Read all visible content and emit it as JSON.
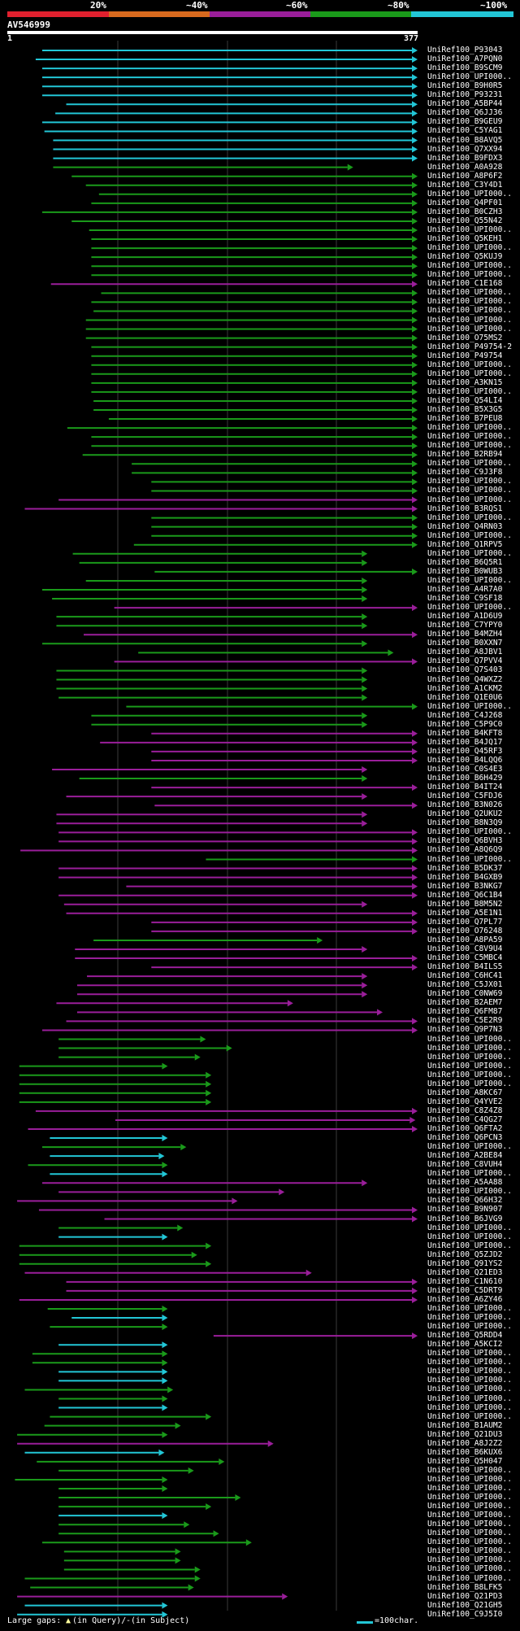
{
  "legend": {
    "labels": [
      "20%",
      "~40%",
      "~60%",
      "~80%",
      "~100%"
    ],
    "colors": [
      "#e0202e",
      "#d86a1e",
      "#9a1e9a",
      "#1a9a1a",
      "#22c6d6"
    ]
  },
  "query": {
    "id": "AV546999",
    "start_label": "1",
    "end_label": "377"
  },
  "footer": {
    "large_gaps_label": "Large gaps:",
    "query_marker": "▲",
    "query_label": "(in Query)/",
    "subject_marker": "-",
    "subject_label": " (in Subject)",
    "scale_label": "=100char."
  },
  "hits": [
    {
      "label": "UniRef100_P93043",
      "s": 33,
      "e": 377,
      "c": "c",
      "a": 1
    },
    {
      "label": "UniRef100_A7PQN0",
      "s": 27,
      "e": 377,
      "c": "c",
      "a": 1
    },
    {
      "label": "UniRef100_B9SCM9",
      "s": 33,
      "e": 377,
      "c": "c",
      "a": 1
    },
    {
      "label": "UniRef100_UPI000..",
      "s": 33,
      "e": 377,
      "c": "c",
      "a": 1
    },
    {
      "label": "UniRef100_B9H0R5",
      "s": 33,
      "e": 377,
      "c": "c",
      "a": 1
    },
    {
      "label": "UniRef100_P93231",
      "s": 33,
      "e": 377,
      "c": "c",
      "a": 1
    },
    {
      "label": "UniRef100_A5BP44",
      "s": 55,
      "e": 377,
      "c": "c",
      "a": 1
    },
    {
      "label": "UniRef100_Q6JJ36",
      "s": 45,
      "e": 377,
      "c": "c",
      "a": 1
    },
    {
      "label": "UniRef100_B9GEU9",
      "s": 33,
      "e": 377,
      "c": "c",
      "a": 1
    },
    {
      "label": "UniRef100_C5YAG1",
      "s": 35,
      "e": 377,
      "c": "c",
      "a": 1
    },
    {
      "label": "UniRef100_B8AVQ5",
      "s": 43,
      "e": 377,
      "c": "c",
      "a": 1
    },
    {
      "label": "UniRef100_Q7XX94",
      "s": 43,
      "e": 377,
      "c": "c",
      "a": 1
    },
    {
      "label": "UniRef100_B9FDX3",
      "s": 43,
      "e": 377,
      "c": "c",
      "a": 1
    },
    {
      "label": "UniRef100_A0A928",
      "s": 43,
      "e": 318,
      "c": "g",
      "a": 1
    },
    {
      "label": "UniRef100_A8P6F2",
      "s": 60,
      "e": 377,
      "c": "g",
      "a": 1
    },
    {
      "label": "UniRef100_C3Y4D1",
      "s": 73,
      "e": 377,
      "c": "g",
      "a": 1
    },
    {
      "label": "UniRef100_UPI000..",
      "s": 85,
      "e": 377,
      "c": "g",
      "a": 1
    },
    {
      "label": "UniRef100_Q4PF01",
      "s": 78,
      "e": 377,
      "c": "g",
      "a": 1
    },
    {
      "label": "UniRef100_B0CZH3",
      "s": 33,
      "e": 377,
      "c": "g",
      "a": 1
    },
    {
      "label": "UniRef100_Q55N42",
      "s": 60,
      "e": 377,
      "c": "g",
      "a": 1
    },
    {
      "label": "UniRef100_UPI000..",
      "s": 76,
      "e": 377,
      "c": "g",
      "a": 1
    },
    {
      "label": "UniRef100_Q5KEH1",
      "s": 78,
      "e": 377,
      "c": "g",
      "a": 1
    },
    {
      "label": "UniRef100_UPI000..",
      "s": 78,
      "e": 377,
      "c": "g",
      "a": 1
    },
    {
      "label": "UniRef100_Q5KUJ9",
      "s": 78,
      "e": 377,
      "c": "g",
      "a": 1
    },
    {
      "label": "UniRef100_UPI000..",
      "s": 78,
      "e": 377,
      "c": "g",
      "a": 1
    },
    {
      "label": "UniRef100_UPI000..",
      "s": 78,
      "e": 377,
      "c": "g",
      "a": 1
    },
    {
      "label": "UniRef100_C1E168",
      "s": 41,
      "e": 377,
      "c": "m",
      "a": 1
    },
    {
      "label": "UniRef100_UPI000..",
      "s": 87,
      "e": 377,
      "c": "g",
      "a": 1
    },
    {
      "label": "UniRef100_UPI000..",
      "s": 78,
      "e": 377,
      "c": "g",
      "a": 1
    },
    {
      "label": "UniRef100_UPI000..",
      "s": 80,
      "e": 377,
      "c": "g",
      "a": 1
    },
    {
      "label": "UniRef100_UPI000..",
      "s": 73,
      "e": 377,
      "c": "g",
      "a": 1
    },
    {
      "label": "UniRef100_UPI000..",
      "s": 73,
      "e": 377,
      "c": "g",
      "a": 1
    },
    {
      "label": "UniRef100_O75MS2",
      "s": 73,
      "e": 377,
      "c": "g",
      "a": 1
    },
    {
      "label": "UniRef100_P49754-2",
      "s": 78,
      "e": 377,
      "c": "g",
      "a": 1
    },
    {
      "label": "UniRef100_P49754",
      "s": 78,
      "e": 377,
      "c": "g",
      "a": 1
    },
    {
      "label": "UniRef100_UPI000..",
      "s": 78,
      "e": 377,
      "c": "g",
      "a": 1
    },
    {
      "label": "UniRef100_UPI000..",
      "s": 78,
      "e": 377,
      "c": "g",
      "a": 1
    },
    {
      "label": "UniRef100_A3KN15",
      "s": 78,
      "e": 377,
      "c": "g",
      "a": 1
    },
    {
      "label": "UniRef100_UPI000..",
      "s": 78,
      "e": 377,
      "c": "g",
      "a": 1
    },
    {
      "label": "UniRef100_Q54LI4",
      "s": 80,
      "e": 377,
      "c": "g",
      "a": 1
    },
    {
      "label": "UniRef100_B5X3G5",
      "s": 80,
      "e": 377,
      "c": "g",
      "a": 1
    },
    {
      "label": "UniRef100_B7PEU8",
      "s": 94,
      "e": 377,
      "c": "g",
      "a": 1
    },
    {
      "label": "UniRef100_UPI000..",
      "s": 56,
      "e": 377,
      "c": "g",
      "a": 1
    },
    {
      "label": "UniRef100_UPI000..",
      "s": 78,
      "e": 377,
      "c": "g",
      "a": 1
    },
    {
      "label": "UniRef100_UPI000..",
      "s": 78,
      "e": 377,
      "c": "g",
      "a": 1
    },
    {
      "label": "UniRef100_B2RB94",
      "s": 70,
      "e": 377,
      "c": "g",
      "a": 1
    },
    {
      "label": "UniRef100_UPI000..",
      "s": 115,
      "e": 377,
      "c": "g",
      "a": 1
    },
    {
      "label": "UniRef100_C9J3F8",
      "s": 115,
      "e": 377,
      "c": "g",
      "a": 1
    },
    {
      "label": "UniRef100_UPI000..",
      "s": 133,
      "e": 377,
      "c": "g",
      "a": 1
    },
    {
      "label": "UniRef100_UPI000..",
      "s": 133,
      "e": 377,
      "c": "g",
      "a": 1
    },
    {
      "label": "UniRef100_UPI000..",
      "s": 48,
      "e": 377,
      "c": "m",
      "a": 1
    },
    {
      "label": "UniRef100_B3RQS1",
      "s": 17,
      "e": 377,
      "c": "m",
      "a": 1
    },
    {
      "label": "UniRef100_UPI000..",
      "s": 133,
      "e": 377,
      "c": "g",
      "a": 1
    },
    {
      "label": "UniRef100_Q4RN03",
      "s": 133,
      "e": 377,
      "c": "g",
      "a": 1
    },
    {
      "label": "UniRef100_UPI000..",
      "s": 133,
      "e": 377,
      "c": "g",
      "a": 1
    },
    {
      "label": "UniRef100_Q1RPV5",
      "s": 117,
      "e": 377,
      "c": "g",
      "a": 1
    },
    {
      "label": "UniRef100_UPI000..",
      "s": 61,
      "e": 331,
      "c": "g",
      "a": 1
    },
    {
      "label": "UniRef100_B6Q5R1",
      "s": 67,
      "e": 331,
      "c": "g",
      "a": 1
    },
    {
      "label": "UniRef100_B0WUB3",
      "s": 136,
      "e": 377,
      "c": "g",
      "a": 1
    },
    {
      "label": "UniRef100_UPI000..",
      "s": 73,
      "e": 331,
      "c": "g",
      "a": 1
    },
    {
      "label": "UniRef100_A4R7A0",
      "s": 33,
      "e": 331,
      "c": "g",
      "a": 1
    },
    {
      "label": "UniRef100_C9SF18",
      "s": 42,
      "e": 331,
      "c": "g",
      "a": 1
    },
    {
      "label": "UniRef100_UPI000..",
      "s": 99,
      "e": 377,
      "c": "m",
      "a": 1
    },
    {
      "label": "UniRef100_A1D6U9",
      "s": 46,
      "e": 331,
      "c": "g",
      "a": 1
    },
    {
      "label": "UniRef100_C7YPY0",
      "s": 46,
      "e": 331,
      "c": "g",
      "a": 1
    },
    {
      "label": "UniRef100_B4MZH4",
      "s": 71,
      "e": 377,
      "c": "m",
      "a": 1
    },
    {
      "label": "UniRef100_B0XXN7",
      "s": 33,
      "e": 331,
      "c": "g",
      "a": 1
    },
    {
      "label": "UniRef100_A8JBV1",
      "s": 121,
      "e": 355,
      "c": "g",
      "a": 1
    },
    {
      "label": "UniRef100_Q7PVV4",
      "s": 99,
      "e": 377,
      "c": "m",
      "a": 1
    },
    {
      "label": "UniRef100_Q7S403",
      "s": 46,
      "e": 331,
      "c": "g",
      "a": 1
    },
    {
      "label": "UniRef100_Q4WXZ2",
      "s": 46,
      "e": 331,
      "c": "g",
      "a": 1
    },
    {
      "label": "UniRef100_A1CKM2",
      "s": 46,
      "e": 331,
      "c": "g",
      "a": 1
    },
    {
      "label": "UniRef100_Q1E0U6",
      "s": 48,
      "e": 331,
      "c": "g",
      "a": 1
    },
    {
      "label": "UniRef100_UPI000..",
      "s": 110,
      "e": 377,
      "c": "g",
      "a": 1
    },
    {
      "label": "UniRef100_C4J268",
      "s": 78,
      "e": 331,
      "c": "g",
      "a": 1
    },
    {
      "label": "UniRef100_C5P9C0",
      "s": 78,
      "e": 331,
      "c": "g",
      "a": 1
    },
    {
      "label": "UniRef100_B4KFT8",
      "s": 133,
      "e": 377,
      "c": "m",
      "a": 1
    },
    {
      "label": "UniRef100_B4JQ17",
      "s": 86,
      "e": 377,
      "c": "m",
      "a": 1
    },
    {
      "label": "UniRef100_Q45RF3",
      "s": 133,
      "e": 377,
      "c": "m",
      "a": 1
    },
    {
      "label": "UniRef100_B4LQQ6",
      "s": 133,
      "e": 377,
      "c": "m",
      "a": 1
    },
    {
      "label": "UniRef100_C0S4E3",
      "s": 42,
      "e": 331,
      "c": "m",
      "a": 1
    },
    {
      "label": "UniRef100_B6H429",
      "s": 67,
      "e": 331,
      "c": "g",
      "a": 1
    },
    {
      "label": "UniRef100_B4IT24",
      "s": 133,
      "e": 377,
      "c": "m",
      "a": 1
    },
    {
      "label": "UniRef100_C5FDJ6",
      "s": 55,
      "e": 331,
      "c": "m",
      "a": 1
    },
    {
      "label": "UniRef100_B3N026",
      "s": 136,
      "e": 377,
      "c": "m",
      "a": 1
    },
    {
      "label": "UniRef100_Q2UKU2",
      "s": 46,
      "e": 331,
      "c": "m",
      "a": 1
    },
    {
      "label": "UniRef100_B8N3Q9",
      "s": 46,
      "e": 331,
      "c": "m",
      "a": 1
    },
    {
      "label": "UniRef100_UPI000..",
      "s": 48,
      "e": 377,
      "c": "m",
      "a": 1
    },
    {
      "label": "UniRef100_Q6BVH3",
      "s": 48,
      "e": 377,
      "c": "m",
      "a": 1
    },
    {
      "label": "UniRef100_A8Q6Q9",
      "s": 13,
      "e": 377,
      "c": "m",
      "a": 1
    },
    {
      "label": "UniRef100_UPI000..",
      "s": 183,
      "e": 377,
      "c": "g",
      "a": 1
    },
    {
      "label": "UniRef100_B5DK37",
      "s": 48,
      "e": 377,
      "c": "m",
      "a": 1
    },
    {
      "label": "UniRef100_B4GXB9",
      "s": 48,
      "e": 377,
      "c": "m",
      "a": 1
    },
    {
      "label": "UniRef100_B3NKG7",
      "s": 110,
      "e": 377,
      "c": "m",
      "a": 1
    },
    {
      "label": "UniRef100_Q6C1B4",
      "s": 48,
      "e": 377,
      "c": "m",
      "a": 1
    },
    {
      "label": "UniRef100_B8M5N2",
      "s": 53,
      "e": 331,
      "c": "m",
      "a": 1
    },
    {
      "label": "UniRef100_A5E1N1",
      "s": 55,
      "e": 377,
      "c": "m",
      "a": 1
    },
    {
      "label": "UniRef100_Q7PL77",
      "s": 133,
      "e": 377,
      "c": "m",
      "a": 1
    },
    {
      "label": "UniRef100_O76248",
      "s": 133,
      "e": 377,
      "c": "m",
      "a": 1
    },
    {
      "label": "UniRef100_A8PA59",
      "s": 80,
      "e": 290,
      "c": "g",
      "a": 1
    },
    {
      "label": "UniRef100_C8V9U4",
      "s": 63,
      "e": 331,
      "c": "m",
      "a": 1
    },
    {
      "label": "UniRef100_C5MBC4",
      "s": 63,
      "e": 377,
      "c": "m",
      "a": 1
    },
    {
      "label": "UniRef100_B4ILS5",
      "s": 133,
      "e": 377,
      "c": "m",
      "a": 1
    },
    {
      "label": "UniRef100_C6HC41",
      "s": 74,
      "e": 331,
      "c": "m",
      "a": 1
    },
    {
      "label": "UniRef100_C5JX01",
      "s": 65,
      "e": 331,
      "c": "m",
      "a": 1
    },
    {
      "label": "UniRef100_C0NW69",
      "s": 65,
      "e": 331,
      "c": "m",
      "a": 1
    },
    {
      "label": "UniRef100_B2AEM7",
      "s": 46,
      "e": 263,
      "c": "m",
      "a": 1
    },
    {
      "label": "UniRef100_Q6FM87",
      "s": 65,
      "e": 345,
      "c": "m",
      "a": 1
    },
    {
      "label": "UniRef100_C5E2R9",
      "s": 55,
      "e": 377,
      "c": "m",
      "a": 1
    },
    {
      "label": "UniRef100_Q9P7N3",
      "s": 33,
      "e": 377,
      "c": "m",
      "a": 1
    },
    {
      "label": "UniRef100_UPI000..",
      "s": 48,
      "e": 183,
      "c": "g",
      "a": 1
    },
    {
      "label": "UniRef100_UPI000..",
      "s": 48,
      "e": 207,
      "c": "g",
      "a": 1
    },
    {
      "label": "UniRef100_UPI000..",
      "s": 48,
      "e": 178,
      "c": "g",
      "a": 1
    },
    {
      "label": "UniRef100_UPI000..",
      "s": 12,
      "e": 148,
      "c": "g",
      "a": 1
    },
    {
      "label": "UniRef100_UPI000..",
      "s": 12,
      "e": 188,
      "c": "g",
      "a": 1
    },
    {
      "label": "UniRef100_UPI000..",
      "s": 12,
      "e": 188,
      "c": "g",
      "a": 1
    },
    {
      "label": "UniRef100_A8KC67",
      "s": 12,
      "e": 188,
      "c": "g",
      "a": 1
    },
    {
      "label": "UniRef100_Q4YVE2",
      "s": 12,
      "e": 188,
      "c": "g",
      "a": 1
    },
    {
      "label": "UniRef100_C8Z4Z8",
      "s": 27,
      "e": 377,
      "c": "m",
      "a": 1
    },
    {
      "label": "UniRef100_C4QG27",
      "s": 100,
      "e": 375,
      "c": "m",
      "a": 1
    },
    {
      "label": "UniRef100_Q6FTA2",
      "s": 20,
      "e": 377,
      "c": "m",
      "a": 1
    },
    {
      "label": "UniRef100_Q6PCN3",
      "s": 40,
      "e": 148,
      "c": "c",
      "a": 1
    },
    {
      "label": "UniRef100_UPI000..",
      "s": 33,
      "e": 165,
      "c": "g",
      "a": 1
    },
    {
      "label": "UniRef100_A2BE84",
      "s": 40,
      "e": 145,
      "c": "c",
      "a": 1
    },
    {
      "label": "UniRef100_C8VUH4",
      "s": 20,
      "e": 148,
      "c": "g",
      "a": 1
    },
    {
      "label": "UniRef100_UPI000..",
      "s": 40,
      "e": 148,
      "c": "c",
      "a": 1
    },
    {
      "label": "UniRef100_A5AA88",
      "s": 33,
      "e": 331,
      "c": "m",
      "a": 1
    },
    {
      "label": "UniRef100_UPI000..",
      "s": 48,
      "e": 255,
      "c": "m",
      "a": 1
    },
    {
      "label": "UniRef100_Q66H32",
      "s": 10,
      "e": 212,
      "c": "m",
      "a": 1
    },
    {
      "label": "UniRef100_B9N907",
      "s": 30,
      "e": 377,
      "c": "m",
      "a": 1
    },
    {
      "label": "UniRef100_B6JVG9",
      "s": 90,
      "e": 377,
      "c": "m",
      "a": 1
    },
    {
      "label": "UniRef100_UPI000..",
      "s": 48,
      "e": 162,
      "c": "g",
      "a": 1
    },
    {
      "label": "UniRef100_UPI000..",
      "s": 48,
      "e": 148,
      "c": "c",
      "a": 1
    },
    {
      "label": "UniRef100_UPI000..",
      "s": 12,
      "e": 188,
      "c": "g",
      "a": 1
    },
    {
      "label": "UniRef100_Q5ZJD2",
      "s": 12,
      "e": 175,
      "c": "g",
      "a": 1
    },
    {
      "label": "UniRef100_Q91YS2",
      "s": 12,
      "e": 188,
      "c": "g",
      "a": 1
    },
    {
      "label": "UniRef100_Q21ED3",
      "s": 17,
      "e": 280,
      "c": "m",
      "a": 1
    },
    {
      "label": "UniRef100_C1N610",
      "s": 55,
      "e": 377,
      "c": "m",
      "a": 1
    },
    {
      "label": "UniRef100_C5DRT9",
      "s": 55,
      "e": 377,
      "c": "m",
      "a": 1
    },
    {
      "label": "UniRef100_A6ZY46",
      "s": 12,
      "e": 377,
      "c": "m",
      "a": 1
    },
    {
      "label": "UniRef100_UPI000..",
      "s": 38,
      "e": 148,
      "c": "g",
      "a": 1
    },
    {
      "label": "UniRef100_UPI000..",
      "s": 60,
      "e": 148,
      "c": "c",
      "a": 1
    },
    {
      "label": "UniRef100_UPI000..",
      "s": 40,
      "e": 148,
      "c": "g",
      "a": 1
    },
    {
      "label": "UniRef100_Q5RDD4",
      "s": 190,
      "e": 377,
      "c": "m",
      "a": 1
    },
    {
      "label": "UniRef100_A5KCI2",
      "s": 48,
      "e": 148,
      "c": "c",
      "a": 1
    },
    {
      "label": "UniRef100_UPI000..",
      "s": 24,
      "e": 148,
      "c": "g",
      "a": 1
    },
    {
      "label": "UniRef100_UPI000..",
      "s": 24,
      "e": 148,
      "c": "g",
      "a": 1
    },
    {
      "label": "UniRef100_UPI000..",
      "s": 48,
      "e": 148,
      "c": "c",
      "a": 1
    },
    {
      "label": "UniRef100_UPI000..",
      "s": 48,
      "e": 148,
      "c": "c",
      "a": 1
    },
    {
      "label": "UniRef100_UPI000..",
      "s": 17,
      "e": 153,
      "c": "g",
      "a": 1
    },
    {
      "label": "UniRef100_UPI000..",
      "s": 48,
      "e": 148,
      "c": "g",
      "a": 1
    },
    {
      "label": "UniRef100_UPI000..",
      "s": 48,
      "e": 148,
      "c": "c",
      "a": 1
    },
    {
      "label": "UniRef100_UPI000..",
      "s": 40,
      "e": 188,
      "c": "g",
      "a": 1
    },
    {
      "label": "UniRef100_B1AUM2",
      "s": 35,
      "e": 160,
      "c": "g",
      "a": 1
    },
    {
      "label": "UniRef100_Q21DU3",
      "s": 10,
      "e": 148,
      "c": "g",
      "a": 1
    },
    {
      "label": "UniRef100_A8J2Z2",
      "s": 10,
      "e": 245,
      "c": "m",
      "a": 1
    },
    {
      "label": "UniRef100_B6KUX6",
      "s": 17,
      "e": 145,
      "c": "c",
      "a": 1
    },
    {
      "label": "UniRef100_Q5H047",
      "s": 28,
      "e": 200,
      "c": "g",
      "a": 1
    },
    {
      "label": "UniRef100_UPI000..",
      "s": 48,
      "e": 172,
      "c": "g",
      "a": 1
    },
    {
      "label": "UniRef100_UPI000..",
      "s": 8,
      "e": 148,
      "c": "g",
      "a": 1
    },
    {
      "label": "UniRef100_UPI000..",
      "s": 48,
      "e": 148,
      "c": "g",
      "a": 1
    },
    {
      "label": "UniRef100_UPI000..",
      "s": 48,
      "e": 215,
      "c": "g",
      "a": 1
    },
    {
      "label": "UniRef100_UPI000..",
      "s": 48,
      "e": 188,
      "c": "g",
      "a": 1
    },
    {
      "label": "UniRef100_UPI000..",
      "s": 48,
      "e": 148,
      "c": "c",
      "a": 1
    },
    {
      "label": "UniRef100_UPI000..",
      "s": 48,
      "e": 168,
      "c": "g",
      "a": 1
    },
    {
      "label": "UniRef100_UPI000..",
      "s": 48,
      "e": 195,
      "c": "g",
      "a": 1
    },
    {
      "label": "UniRef100_UPI000..",
      "s": 33,
      "e": 225,
      "c": "g",
      "a": 1
    },
    {
      "label": "UniRef100_UPI000..",
      "s": 53,
      "e": 160,
      "c": "g",
      "a": 1
    },
    {
      "label": "UniRef100_UPI000..",
      "s": 53,
      "e": 160,
      "c": "g",
      "a": 1
    },
    {
      "label": "UniRef100_UPI000..",
      "s": 53,
      "e": 178,
      "c": "g",
      "a": 1
    },
    {
      "label": "UniRef100_UPI000..",
      "s": 17,
      "e": 178,
      "c": "g",
      "a": 1
    },
    {
      "label": "UniRef100_B8LFK5",
      "s": 22,
      "e": 172,
      "c": "g",
      "a": 1
    },
    {
      "label": "UniRef100_Q21PD3",
      "s": 10,
      "e": 258,
      "c": "m",
      "a": 1
    },
    {
      "label": "UniRef100_Q21GH5",
      "s": 17,
      "e": 148,
      "c": "c",
      "a": 1
    },
    {
      "label": "UniRef100_C9J5I0",
      "s": 10,
      "e": 148,
      "c": "c",
      "a": 1
    }
  ]
}
